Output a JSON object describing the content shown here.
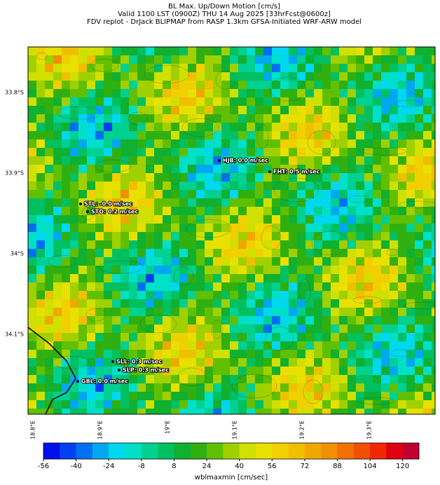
{
  "header": {
    "lines": [
      "BL Max. Up/Down Motion [cm/s]",
      "Valid 1100 LST (0900Z) THU 14 Aug 2025 [33hrFcst@0600z]",
      "FDV replot - DrJack BLIPMAP from RASP 1.3km GFSA-Initiated WRF-ARW model"
    ]
  },
  "map": {
    "lat_labels": [
      "33.8°S",
      "33.9°S",
      "34°S",
      "34.1°S"
    ],
    "lon_labels": [
      "18.8°E",
      "18.9°E",
      "19°E",
      "19.1°E",
      "19.2°E",
      "19.3°E"
    ],
    "stations": [
      {
        "label": "HJB: 0.0 m/sec"
      },
      {
        "label": "FHT: 0.5 m/sec"
      },
      {
        "label": "STL: -0.0 m/sec"
      },
      {
        "label": "STO: 0.2 m/sec"
      },
      {
        "label": "SLL: 0.3 m/sec"
      },
      {
        "label": "SLP: 0.3 m/sec"
      },
      {
        "label": "GBL: 0.0 m/sec"
      }
    ]
  },
  "colorbar": {
    "label": "wblmaxmin [cm/sec]",
    "lim": [
      -56,
      128
    ],
    "ticks": [
      -56,
      -40,
      -24,
      -8,
      8,
      24,
      40,
      56,
      72,
      88,
      104,
      120
    ],
    "colors": [
      "#0010e8",
      "#0040f0",
      "#0070f0",
      "#00a8f0",
      "#00d8f0",
      "#00e0c8",
      "#00d090",
      "#00c060",
      "#10b030",
      "#30b010",
      "#60c000",
      "#a0d000",
      "#d0e000",
      "#e8e000",
      "#f0d000",
      "#f0c000",
      "#f0a800",
      "#f09000",
      "#f07000",
      "#f05000",
      "#f02800",
      "#e00010",
      "#c00030"
    ]
  }
}
